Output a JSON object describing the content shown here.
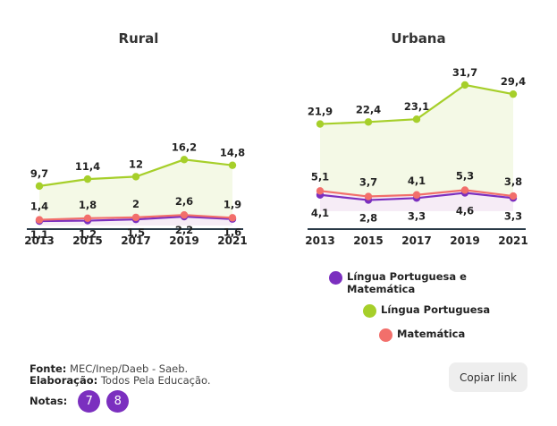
{
  "chart_data": [
    {
      "type": "line",
      "title": "Rural",
      "categories": [
        "2013",
        "2015",
        "2017",
        "2019",
        "2021"
      ],
      "series": [
        {
          "name": "Língua Portuguesa",
          "values": [
            9.7,
            11.4,
            12,
            16.2,
            14.8
          ],
          "labels": [
            "9,7",
            "11,4",
            "12",
            "16,2",
            "14,8"
          ]
        },
        {
          "name": "Matemática",
          "values": [
            1.4,
            1.8,
            2,
            2.6,
            1.9
          ],
          "labels": [
            "1,4",
            "1,8",
            "2",
            "2,6",
            "1,9"
          ]
        },
        {
          "name": "Língua Portuguesa e Matemática",
          "values": [
            1.1,
            1.2,
            1.5,
            2.2,
            1.6
          ],
          "labels": [
            "1,1",
            "1,2",
            "1,5",
            "2,2",
            "1,6"
          ]
        }
      ]
    },
    {
      "type": "line",
      "title": "Urbana",
      "categories": [
        "2013",
        "2015",
        "2017",
        "2019",
        "2021"
      ],
      "series": [
        {
          "name": "Língua Portuguesa",
          "values": [
            21.9,
            22.4,
            23.1,
            31.7,
            29.4
          ],
          "labels": [
            "21,9",
            "22,4",
            "23,1",
            "31,7",
            "29,4"
          ]
        },
        {
          "name": "Matemática",
          "values": [
            5.1,
            3.7,
            4.1,
            5.3,
            3.8
          ],
          "labels": [
            "5,1",
            "3,7",
            "4,1",
            "5,3",
            "3,8"
          ]
        },
        {
          "name": "Língua Portuguesa e Matemática",
          "values": [
            4.1,
            2.8,
            3.3,
            4.6,
            3.3
          ],
          "labels": [
            "4,1",
            "2,8",
            "3,3",
            "4,6",
            "3,3"
          ]
        }
      ]
    }
  ],
  "colors": {
    "lp": "#a6cf2a",
    "mat": "#f26f6b",
    "both": "#7b2fbf",
    "note": "#7b2fbf"
  },
  "legend": {
    "both": "Língua Portuguesa e Matemática",
    "lp": "Língua Portuguesa",
    "mat": "Matemática"
  },
  "footer": {
    "fonte_label": "Fonte:",
    "fonte": "MEC/Inep/Daeb - Saeb.",
    "elab_label": "Elaboração:",
    "elab": "Todos Pela Educação.",
    "notas_label": "Notas:",
    "notes": [
      "7",
      "8"
    ]
  },
  "copy_link": "Copiar link"
}
